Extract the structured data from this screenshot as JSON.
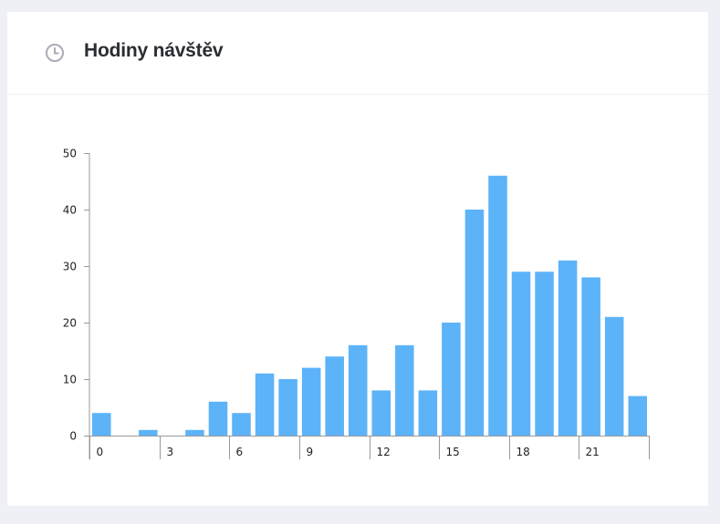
{
  "card": {
    "title": "Hodiny návštěv",
    "icon": "clock-icon"
  },
  "colors": {
    "bar": "#5cb3f8",
    "axis": "#999999",
    "title": "#2a2d33",
    "icon": "#a9abb8"
  },
  "chart_data": {
    "type": "bar",
    "categories": [
      0,
      1,
      2,
      3,
      4,
      5,
      6,
      7,
      8,
      9,
      10,
      11,
      12,
      13,
      14,
      15,
      16,
      17,
      18,
      19,
      20,
      21,
      22,
      23
    ],
    "values": [
      4,
      0,
      1,
      0,
      1,
      6,
      4,
      11,
      10,
      12,
      14,
      16,
      8,
      16,
      8,
      20,
      40,
      46,
      29,
      29,
      31,
      28,
      21,
      7
    ],
    "x_tick_labels": [
      "0",
      "3",
      "6",
      "9",
      "12",
      "15",
      "18",
      "21"
    ],
    "y_ticks": [
      0,
      10,
      20,
      30,
      40,
      50
    ],
    "ylim": [
      0,
      50
    ],
    "title": "",
    "xlabel": "",
    "ylabel": "",
    "grid": false,
    "legend": "none"
  }
}
